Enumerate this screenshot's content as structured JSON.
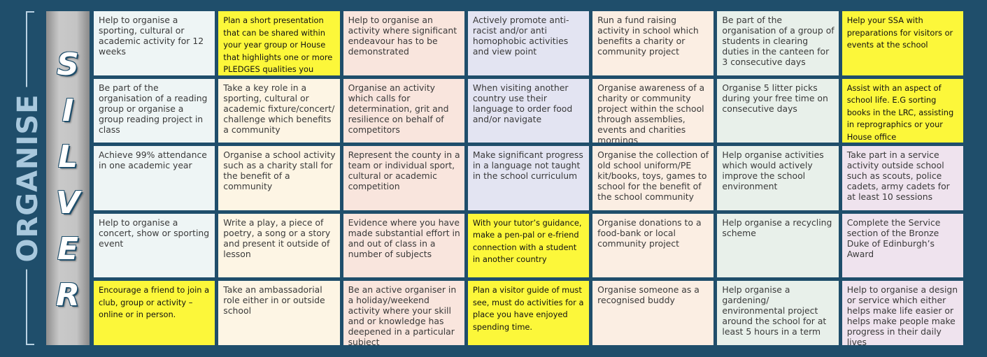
{
  "side_label": "ORGANISE",
  "level_letters": [
    "S",
    "I",
    "L",
    "V",
    "E",
    "R"
  ],
  "colors": {
    "background": "#1f4e6b",
    "highlight": "#fcf73a",
    "column_tints": [
      "#eef5f5",
      "#fdf5e4",
      "#f9e5dd",
      "#e3e4f2",
      "#fbeee3",
      "#e8f0ea",
      "#efe3ee"
    ]
  },
  "rows": [
    [
      {
        "text": "Help to organise a sporting, cultural or academic activity for 12 weeks",
        "highlight": false
      },
      {
        "text": "Plan a short presentation that can be shared within your year group or House that highlights one or more PLEDGES qualities you have developed.",
        "highlight": true
      },
      {
        "text": "Help to organise an activity where significant endeavour has to be demonstrated",
        "highlight": false
      },
      {
        "text": "Actively promote anti-racist and/or anti homophobic activities and view point",
        "highlight": false
      },
      {
        "text": "Run a fund raising activity in school which benefits a charity or community project",
        "highlight": false
      },
      {
        "text": "Be part of the organisation of a group of students in clearing duties in the canteen for 3 consecutive days",
        "highlight": false
      },
      {
        "text": "Help your SSA with preparations for visitors or events at the school",
        "highlight": true
      }
    ],
    [
      {
        "text": "Be part of the organisation of a reading group or organise a group reading project in class",
        "highlight": false
      },
      {
        "text": "Take a key role in a sporting, cultural or academic fixture/concert/ challenge which benefits a community",
        "highlight": false
      },
      {
        "text": "Organise an activity which calls for determination, grit and resilience on behalf of competitors",
        "highlight": false
      },
      {
        "text": "When visiting another country use their language to order food and/or navigate",
        "highlight": false
      },
      {
        "text": "Organise awareness of a charity or community project within the school through assemblies, events and charities mornings",
        "highlight": false
      },
      {
        "text": "Organise 5 litter picks during your free time on consecutive days",
        "highlight": false
      },
      {
        "text": "Assist with an aspect of school life. E.G sorting books in the LRC, assisting in reprographics or your House office",
        "highlight": true
      }
    ],
    [
      {
        "text": "Achieve 99% attendance in one academic year",
        "highlight": false
      },
      {
        "text": "Organise a school activity such as a charity stall for the benefit of a community",
        "highlight": false
      },
      {
        "text": "Represent the county in a team or individual sport, cultural or academic competition",
        "highlight": false
      },
      {
        "text": "Make significant progress in a language not taught in the school curriculum",
        "highlight": false
      },
      {
        "text": "Organise the collection of old school uniform/PE kit/books, toys, games to school for the benefit of the school community",
        "highlight": false
      },
      {
        "text": "Help organise activities which would actively improve the school environment",
        "highlight": false
      },
      {
        "text": "Take part in a service activity outside school such as scouts, police cadets, army cadets for at least 10 sessions",
        "highlight": false
      }
    ],
    [
      {
        "text": "Help to organise a concert, show or sporting event",
        "highlight": false
      },
      {
        "text": "Write a play, a piece of poetry, a song or a story and present it outside of lesson",
        "highlight": false
      },
      {
        "text": "Evidence where you have made substantial effort in and out of class in a number of subjects",
        "highlight": false
      },
      {
        "text": "With your tutor’s guidance, make a pen-pal or e-friend connection with a student in another country",
        "highlight": true
      },
      {
        "text": "Organise donations to a food-bank or local community project",
        "highlight": false
      },
      {
        "text": "Help organise a recycling scheme",
        "highlight": false
      },
      {
        "text": "Complete the Service section of the Bronze Duke of Edinburgh’s Award",
        "highlight": false
      }
    ],
    [
      {
        "text": "Encourage a friend to join a club, group or activity – online or in person.",
        "highlight": true
      },
      {
        "text": "Take an ambassadorial role either in or outside school",
        "highlight": false
      },
      {
        "text": "Be an active organiser in a holiday/weekend activity where your skill and or knowledge has deepened in a particular subject",
        "highlight": false
      },
      {
        "text": "Plan a visitor guide of must see, must do activities for a place you have enjoyed spending time.",
        "highlight": true
      },
      {
        "text": "Organise someone as a recognised buddy",
        "highlight": false
      },
      {
        "text": "Help organise a gardening/ environmental project around the school for at least 5 hours in a term",
        "highlight": false
      },
      {
        "text": "Help to organise a design or service which either helps make life easier or helps make people make progress in their daily lives",
        "highlight": false
      }
    ]
  ]
}
